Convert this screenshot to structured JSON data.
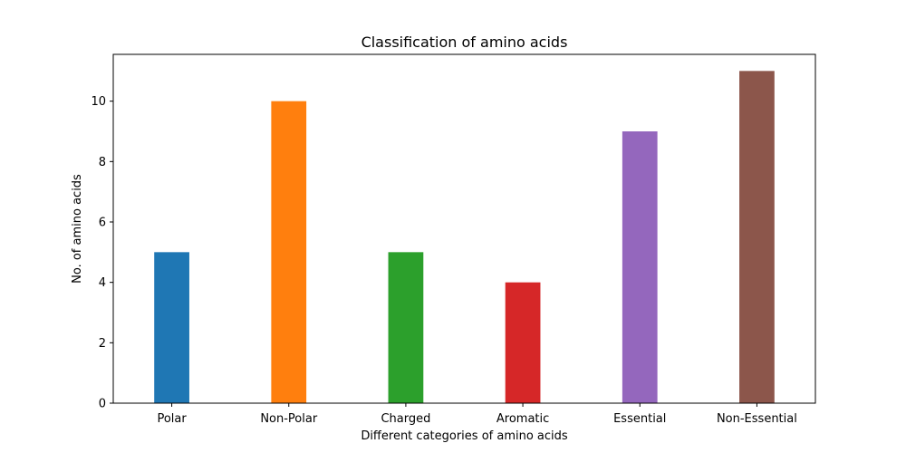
{
  "chart_data": {
    "type": "bar",
    "title": "Classification of amino acids",
    "xlabel": "Different categories of amino acids",
    "ylabel": "No. of amino acids",
    "categories": [
      "Polar",
      "Non-Polar",
      "Charged",
      "Aromatic",
      "Essential",
      "Non-Essential"
    ],
    "values": [
      5,
      10,
      5,
      4,
      9,
      11
    ],
    "colors": [
      "#1f77b4",
      "#ff7f0e",
      "#2ca02c",
      "#d62728",
      "#9467bd",
      "#8c564b"
    ],
    "ylim": [
      0,
      11.55
    ],
    "yticks": [
      0,
      2,
      4,
      6,
      8,
      10
    ],
    "grid": false
  }
}
